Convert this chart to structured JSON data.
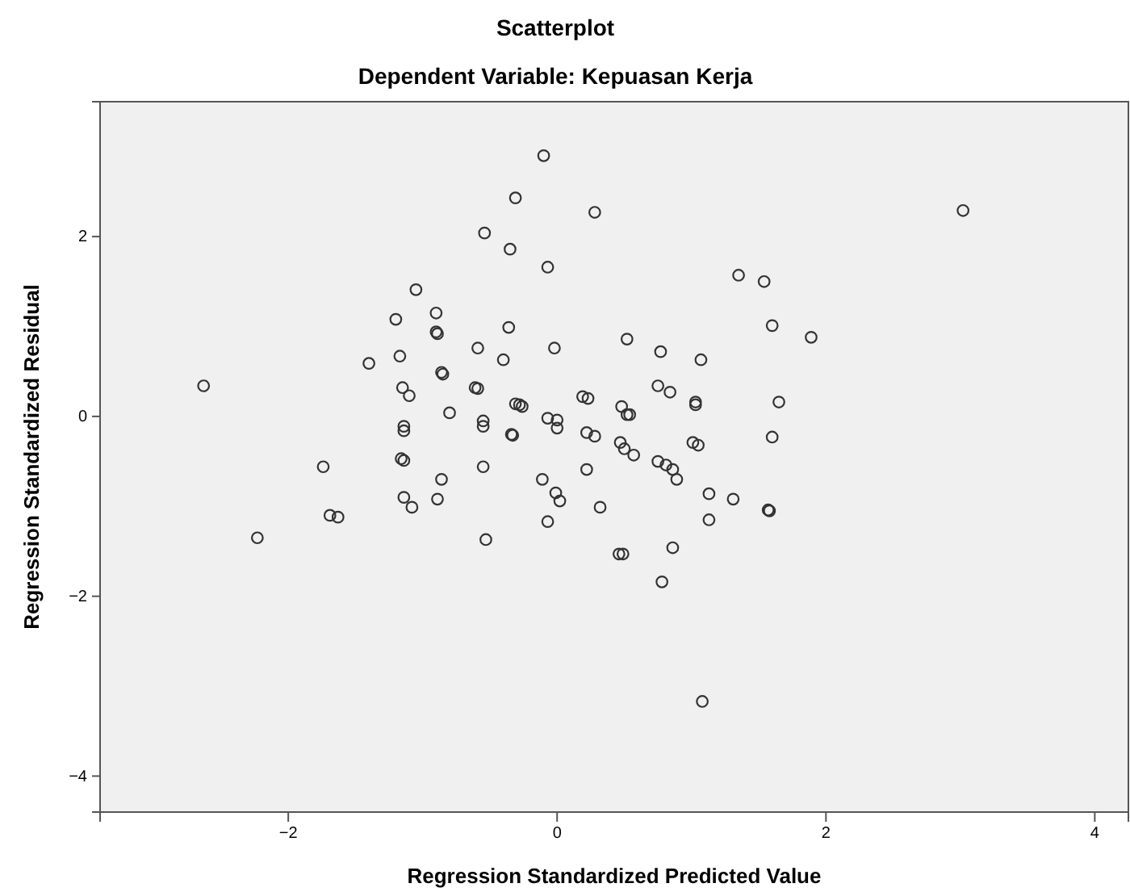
{
  "chart_data": {
    "type": "scatter",
    "title": "Scatterplot",
    "subtitle": "Dependent Variable: Kepuasan Kerja",
    "xlabel": "Regression Standardized Predicted Value",
    "ylabel": "Regression Standardized Residual",
    "xlim": [
      -3.4,
      4.25
    ],
    "ylim": [
      -4.4,
      3.5
    ],
    "xticks": [
      -2,
      0,
      2,
      4
    ],
    "yticks": [
      -4,
      -2,
      0,
      2
    ],
    "grid": false,
    "marker": "circle",
    "series": [
      {
        "color": "#333333",
        "x": [
          -2.63,
          -2.23,
          -1.74,
          -1.69,
          -1.63,
          -1.4,
          -1.2,
          -1.17,
          -1.15,
          -1.1,
          -1.14,
          -1.14,
          -1.16,
          -1.14,
          -1.14,
          -1.08,
          -1.05,
          -0.9,
          -0.9,
          -0.89,
          -0.86,
          -0.85,
          -0.8,
          -0.86,
          -0.89,
          -0.59,
          -0.61,
          -0.59,
          -0.55,
          -0.55,
          -0.55,
          -0.54,
          -0.53,
          -0.4,
          -0.36,
          -0.35,
          -0.31,
          -0.28,
          -0.26,
          -0.34,
          -0.33,
          -0.31,
          -0.1,
          -0.07,
          -0.02,
          -0.11,
          -0.07,
          0,
          0,
          -0.01,
          0.02,
          -0.07,
          0.28,
          0.19,
          0.23,
          0.22,
          0.28,
          0.22,
          0.32,
          0.52,
          0.77,
          1.07,
          0.75,
          0.84,
          1.03,
          1.03,
          0.48,
          0.52,
          0.54,
          1.35,
          1.54,
          1.6,
          1.89,
          1.65,
          1.6,
          3.02,
          0.47,
          0.5,
          0.57,
          1.01,
          1.05,
          0.75,
          0.81,
          0.86,
          0.89,
          1.13,
          1.31,
          1.57,
          1.58,
          1.13,
          0.46,
          0.49,
          0.86,
          0.78,
          1.08
        ],
        "values": [
          0.34,
          -1.35,
          -0.56,
          -1.1,
          -1.12,
          0.59,
          1.08,
          0.67,
          0.32,
          0.23,
          -0.11,
          -0.16,
          -0.47,
          -0.49,
          -0.9,
          -1.01,
          1.41,
          1.15,
          0.94,
          0.92,
          0.49,
          0.47,
          0.04,
          -0.7,
          -0.92,
          0.76,
          0.32,
          0.31,
          -0.05,
          -0.11,
          -0.56,
          2.04,
          -1.37,
          0.63,
          0.99,
          1.86,
          0.14,
          0.13,
          0.11,
          -0.2,
          -0.21,
          2.43,
          2.9,
          1.66,
          0.76,
          -0.7,
          -0.02,
          -0.04,
          -0.13,
          -0.85,
          -0.94,
          -1.17,
          2.27,
          0.22,
          0.2,
          -0.18,
          -0.22,
          -0.59,
          -1.01,
          0.86,
          0.72,
          0.63,
          0.34,
          0.27,
          0.16,
          0.13,
          0.11,
          0.02,
          0.02,
          1.57,
          1.5,
          1.01,
          0.88,
          0.16,
          -0.23,
          2.29,
          -0.29,
          -0.36,
          -0.43,
          -0.29,
          -0.32,
          -0.5,
          -0.54,
          -0.59,
          -0.7,
          -0.86,
          -0.92,
          -1.04,
          -1.05,
          -1.15,
          -1.53,
          -1.53,
          -1.46,
          -1.84,
          -3.17
        ]
      }
    ]
  }
}
